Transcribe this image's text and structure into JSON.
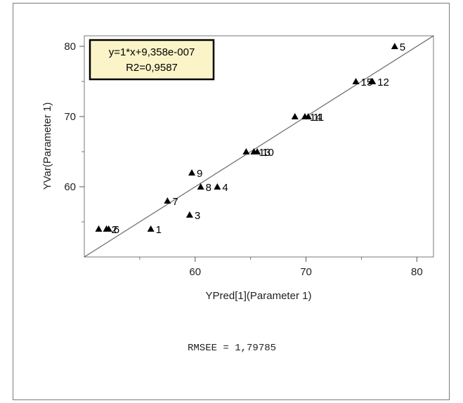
{
  "chart_data": {
    "type": "scatter",
    "xlabel": "YPred[1](Parameter 1)",
    "ylabel": "YVar(Parameter 1)",
    "xlim": [
      50,
      81.5
    ],
    "ylim": [
      50,
      81.5
    ],
    "xticks": [
      60,
      70,
      80
    ],
    "yticks": [
      60,
      70,
      80
    ],
    "xtick_labels": [
      "60",
      "70",
      "80"
    ],
    "ytick_labels": [
      "60",
      "70",
      "80"
    ],
    "grid": false,
    "marker": "triangle",
    "points": [
      {
        "label": "1",
        "x": 56.0,
        "y": 54.0
      },
      {
        "label": "2",
        "x": 52.0,
        "y": 54.0
      },
      {
        "label": "3",
        "x": 59.5,
        "y": 56.0
      },
      {
        "label": "4",
        "x": 62.0,
        "y": 60.0
      },
      {
        "label": "5",
        "x": 78.0,
        "y": 80.0
      },
      {
        "label": "6",
        "x": 52.2,
        "y": 54.0
      },
      {
        "label": "7",
        "x": 57.5,
        "y": 58.0
      },
      {
        "label": "8",
        "x": 60.5,
        "y": 60.0
      },
      {
        "label": "9",
        "x": 59.7,
        "y": 62.0
      },
      {
        "label": "10",
        "x": 65.6,
        "y": 65.0
      },
      {
        "label": "11",
        "x": 70.2,
        "y": 70.0
      },
      {
        "label": "12",
        "x": 76.0,
        "y": 75.0
      },
      {
        "label": "13",
        "x": 65.3,
        "y": 65.0
      },
      {
        "label": "14",
        "x": 69.9,
        "y": 70.0
      },
      {
        "label": "15",
        "x": 74.5,
        "y": 75.0
      },
      {
        "label": "",
        "x": 51.3,
        "y": 54.0
      },
      {
        "label": "",
        "x": 64.6,
        "y": 65.0
      },
      {
        "label": "",
        "x": 69.0,
        "y": 70.0
      },
      {
        "label": "",
        "x": 75.9,
        "y": 75.0
      }
    ],
    "fit_line": {
      "slope": 1,
      "intercept": 9.358e-07
    },
    "annotation": {
      "line1": "y=1*x+9,358e-007",
      "line2": "R2=0,9587",
      "background": "#fbf4c8"
    }
  },
  "footer": {
    "rmsee": "RMSEE = 1,79785"
  }
}
